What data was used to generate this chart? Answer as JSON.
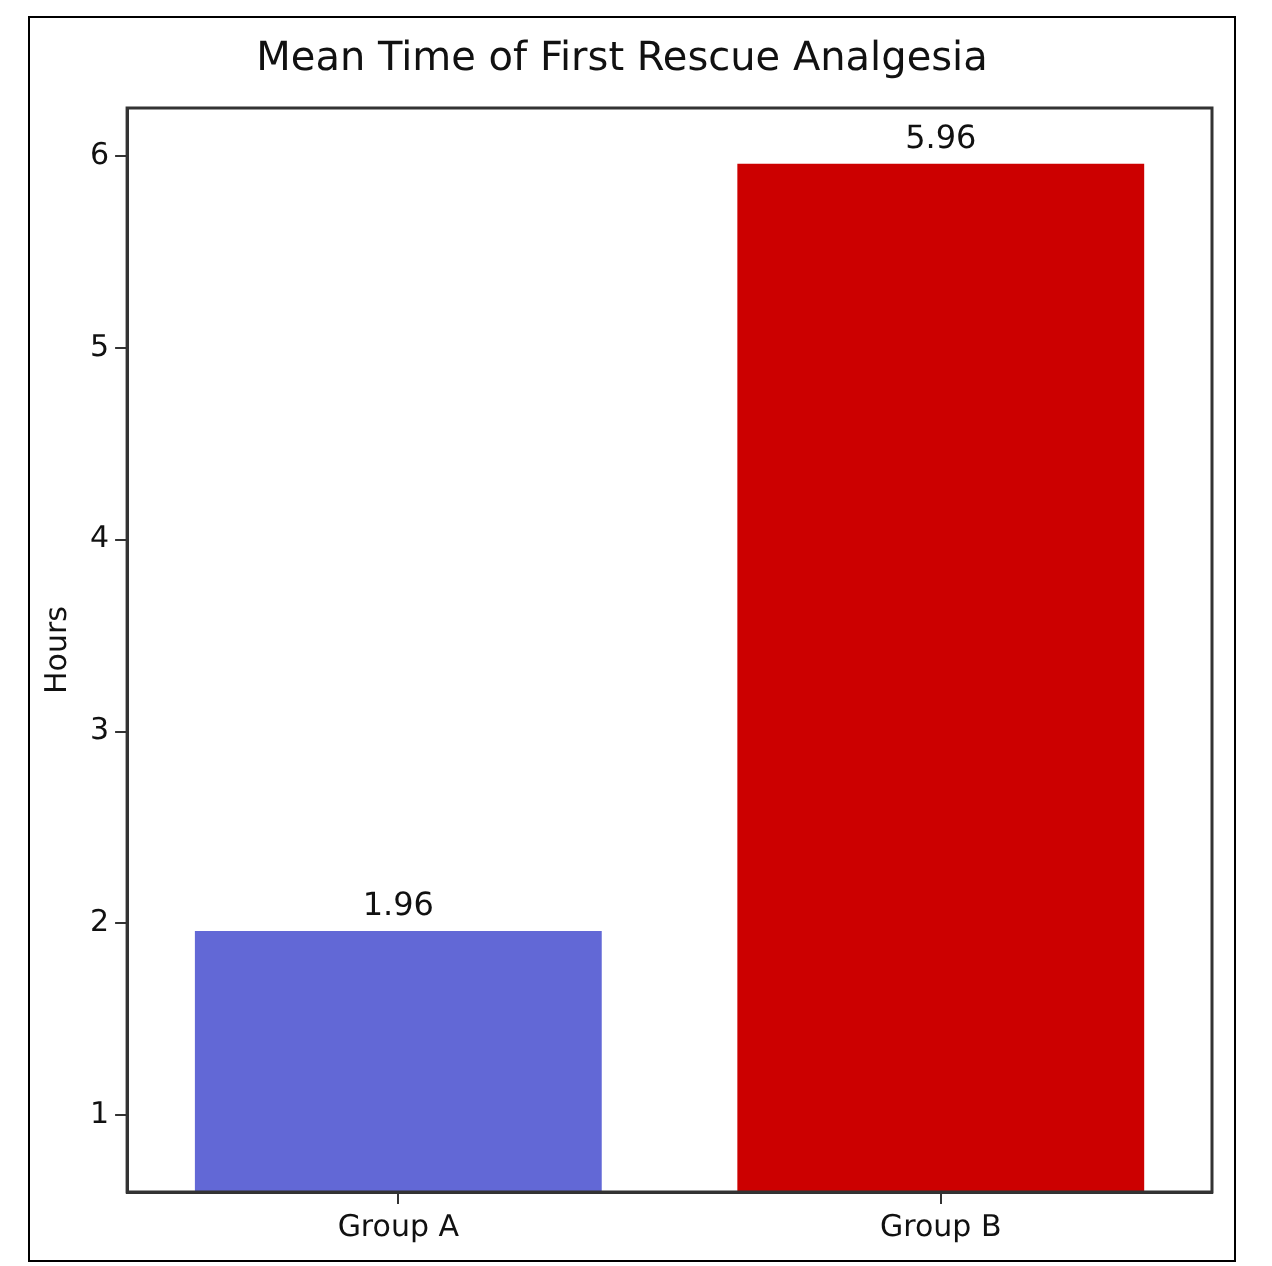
{
  "chart_data": {
    "type": "bar",
    "title": "Mean Time of First Rescue Analgesia",
    "ylabel": "Hours",
    "categories": [
      "Group A",
      "Group B"
    ],
    "values": [
      1.96,
      5.96
    ],
    "colors": [
      "#6268d6",
      "#cc0000"
    ],
    "ylim": [
      0.6,
      6.25
    ],
    "yticks": [
      1,
      2,
      3,
      4,
      5,
      6
    ],
    "data_labels": true,
    "grid": false,
    "legend": false
  }
}
